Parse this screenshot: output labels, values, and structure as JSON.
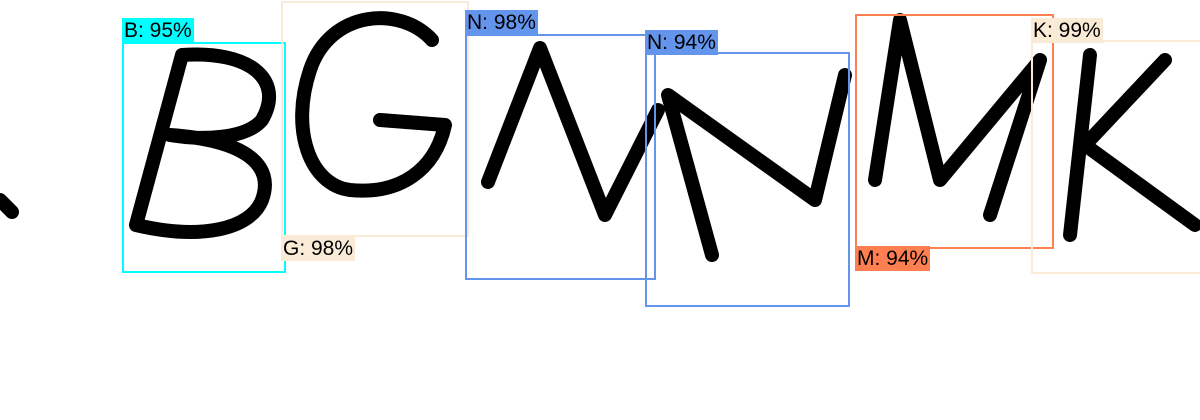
{
  "detections": [
    {
      "id": "b",
      "label": "B: 95%",
      "color": "#00ffff"
    },
    {
      "id": "g",
      "label": "G: 98%",
      "color": "#faebd7"
    },
    {
      "id": "n1",
      "label": "N: 98%",
      "color": "#6495ed"
    },
    {
      "id": "n2",
      "label": "N: 94%",
      "color": "#6495ed"
    },
    {
      "id": "m",
      "label": "M: 94%",
      "color": "#ff7f50"
    },
    {
      "id": "k",
      "label": "K: 99%",
      "color": "#faebd7"
    }
  ]
}
